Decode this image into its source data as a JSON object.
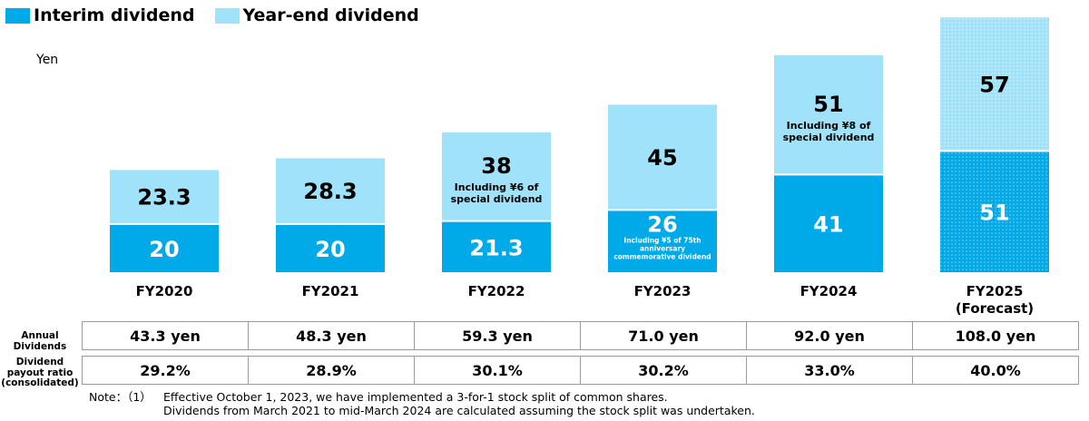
{
  "legend": [
    {
      "label": "Interim dividend",
      "color": "#00a9e8"
    },
    {
      "label": "Year-end dividend",
      "color": "#9fe2fa"
    }
  ],
  "chart_data": {
    "type": "bar",
    "stacked": true,
    "unit_label": "Yen",
    "categories": [
      "FY2020",
      "FY2021",
      "FY2022",
      "FY2023",
      "FY2024",
      "FY2025\n(Forecast)"
    ],
    "series": [
      {
        "name": "Interim dividend",
        "color": "#00a9e8",
        "values": [
          20,
          20,
          21.3,
          26,
          41,
          51
        ],
        "labels": [
          "20",
          "20",
          "21.3",
          "26",
          "41",
          "51"
        ],
        "notes": [
          "",
          "",
          "",
          "Including ¥5 of 75th anniversary commemorative dividend",
          "",
          ""
        ]
      },
      {
        "name": "Year-end dividend",
        "color": "#9fe2fa",
        "values": [
          23.3,
          28.3,
          38,
          45,
          51,
          57
        ],
        "labels": [
          "23.3",
          "28.3",
          "38",
          "45",
          "51",
          "57"
        ],
        "notes": [
          "",
          "",
          "Including ¥6 of special dividend",
          "",
          "Including ¥8 of special dividend",
          ""
        ]
      }
    ],
    "forecast_pattern": "dotted"
  },
  "table": {
    "rows": [
      {
        "label": "Annual Dividends",
        "values": [
          "43.3 yen",
          "48.3 yen",
          "59.3 yen",
          "71.0 yen",
          "92.0 yen",
          "108.0 yen"
        ]
      },
      {
        "label": "Dividend payout ratio (consolidated)",
        "values": [
          "29.2%",
          "28.9%",
          "30.1%",
          "30.2%",
          "33.0%",
          "40.0%"
        ]
      }
    ]
  },
  "note": {
    "prefix": "Note：（1）",
    "line1": "Effective October 1, 2023, we have implemented a 3-for-1 stock split of common shares.",
    "line2": "Dividends from March 2021 to mid-March 2024 are calculated assuming the stock split was undertaken."
  }
}
